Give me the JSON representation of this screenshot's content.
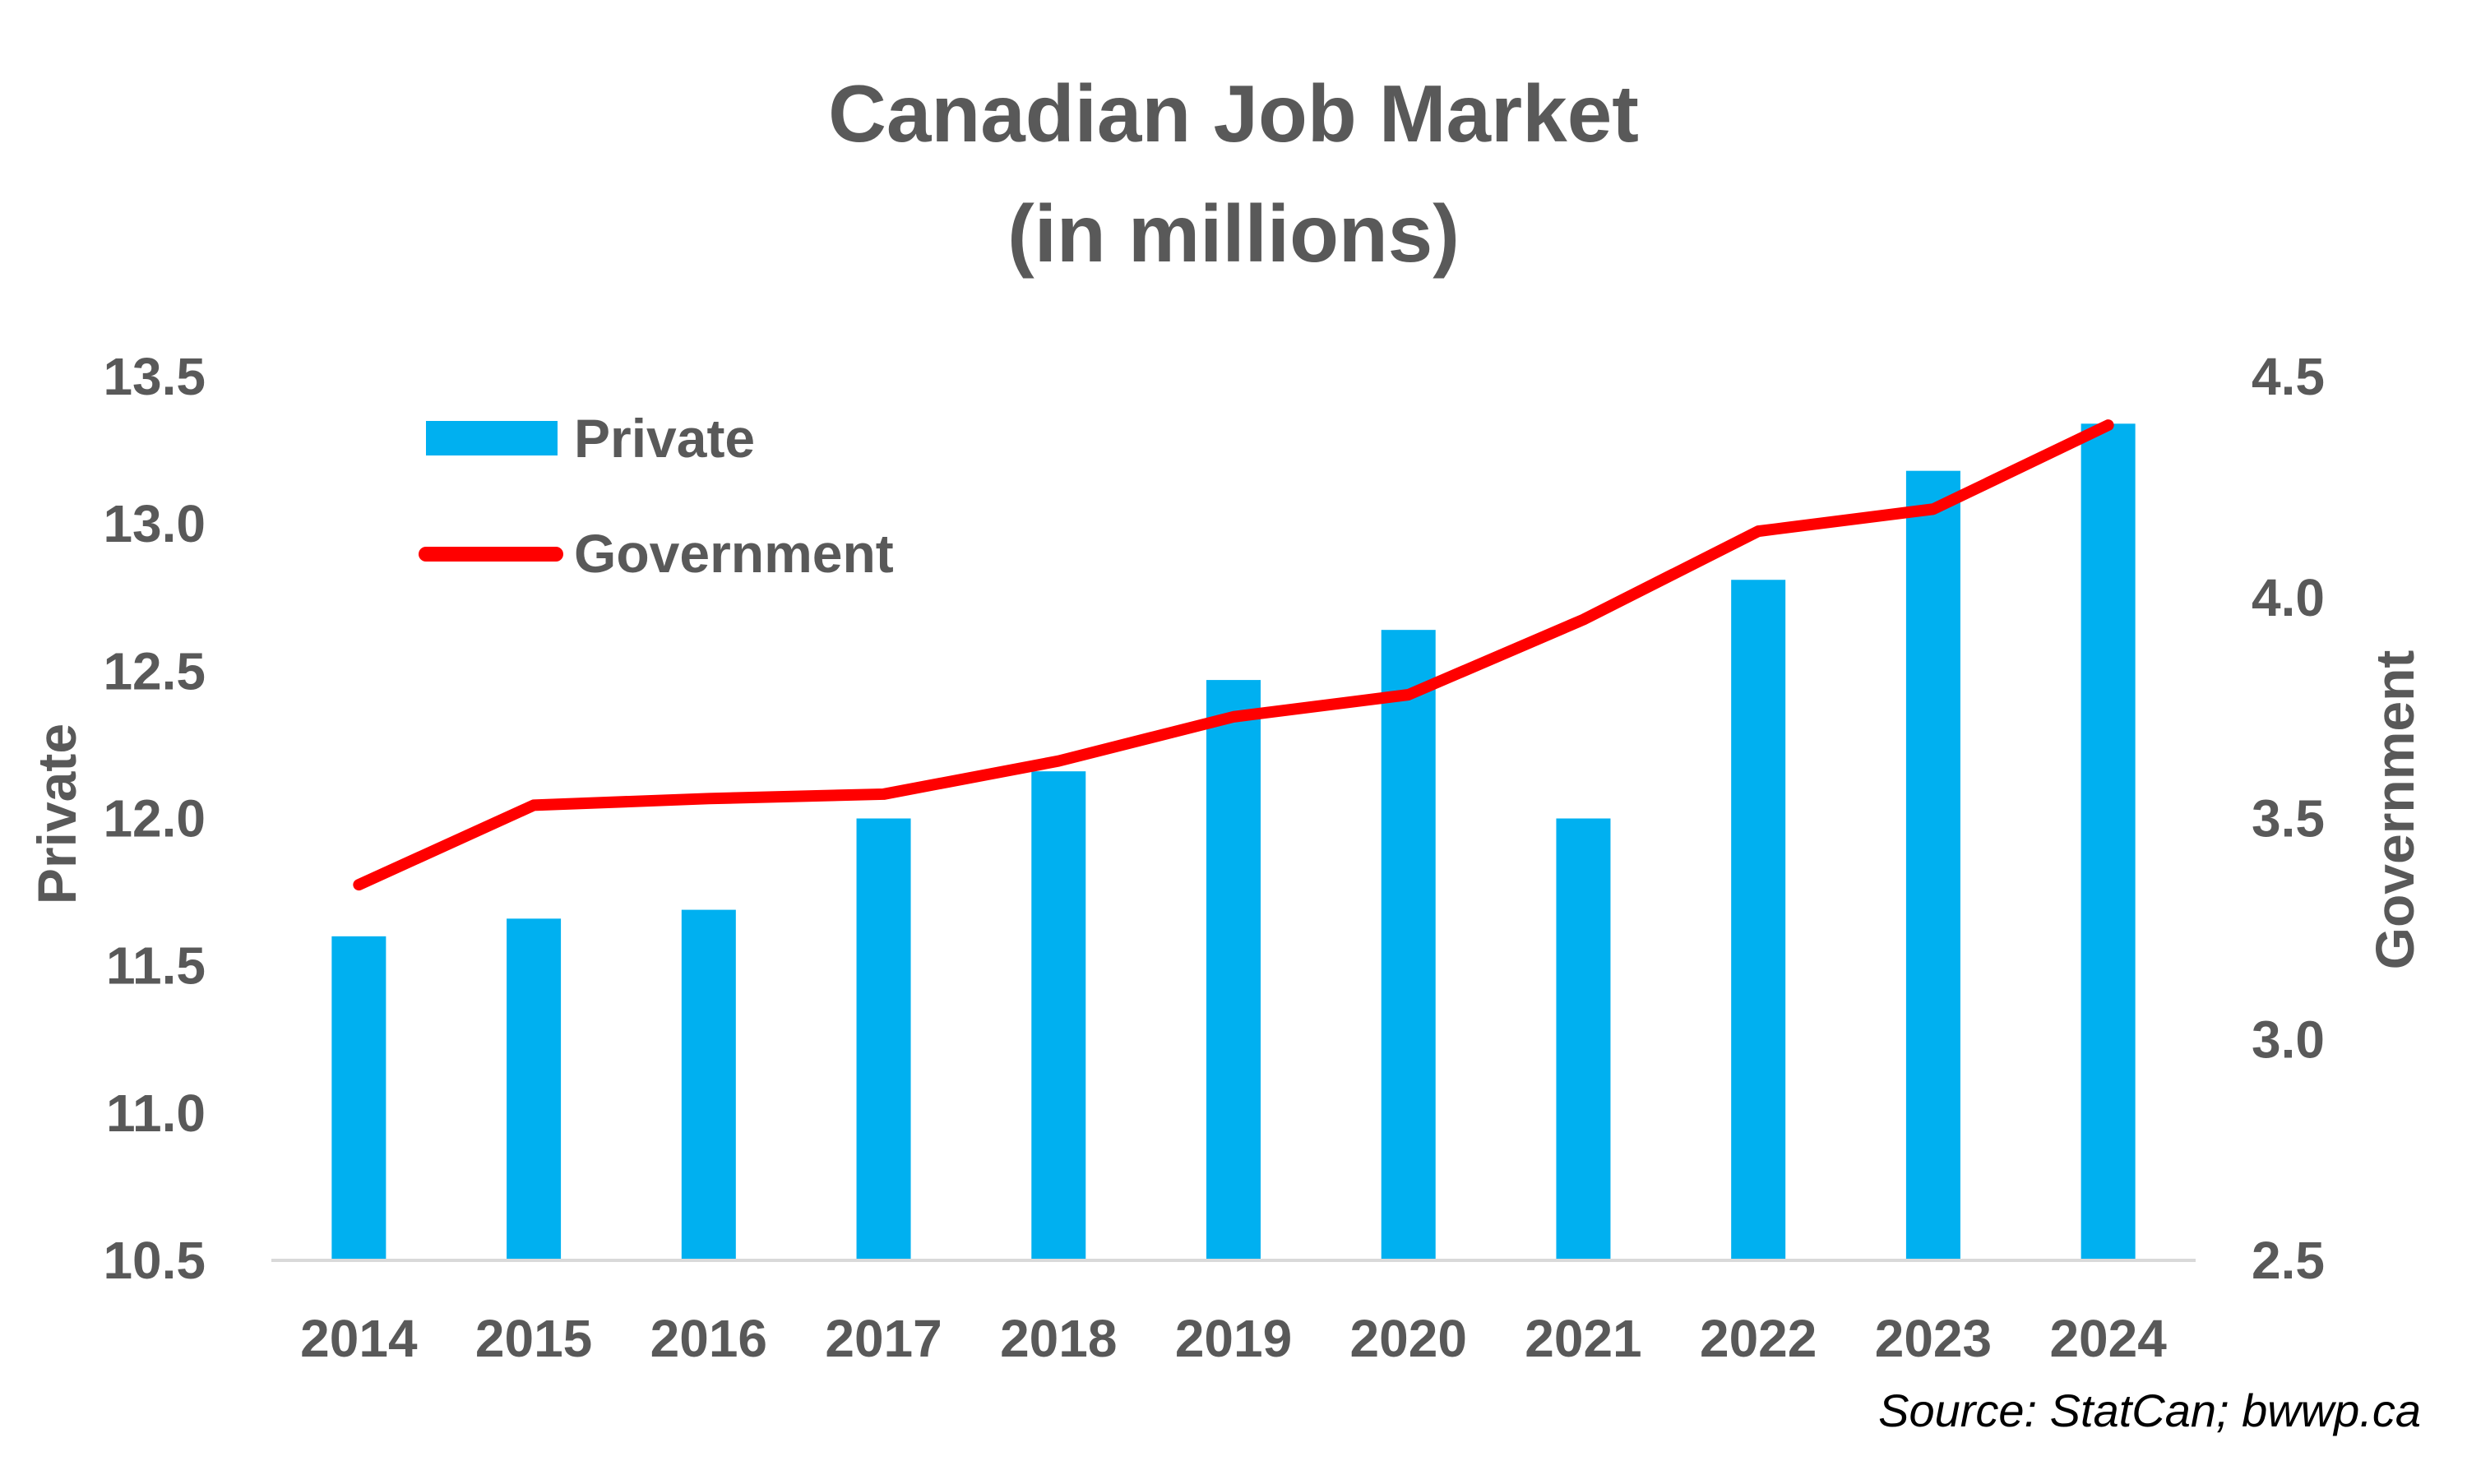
{
  "chart_data": {
    "type": "bar",
    "title": [
      "Canadian Job Market",
      "(in millions)"
    ],
    "categories": [
      "2014",
      "2015",
      "2016",
      "2017",
      "2018",
      "2019",
      "2020",
      "2021",
      "2022",
      "2023",
      "2024"
    ],
    "series": [
      {
        "name": "Private",
        "type": "bar",
        "axis": "left",
        "color": "#00B0F0",
        "values": [
          11.6,
          11.66,
          11.69,
          12.0,
          12.16,
          12.47,
          12.64,
          12.0,
          12.81,
          13.18,
          13.34
        ]
      },
      {
        "name": "Government",
        "type": "line",
        "axis": "right",
        "color": "#FF0000",
        "values": [
          3.35,
          3.53,
          3.545,
          3.555,
          3.63,
          3.73,
          3.78,
          3.95,
          4.15,
          4.2,
          4.39
        ]
      }
    ],
    "y_left": {
      "label": "Private",
      "range": [
        10.5,
        13.5
      ],
      "ticks": [
        "10.5",
        "11.0",
        "11.5",
        "12.0",
        "12.5",
        "13.0",
        "13.5"
      ]
    },
    "y_right": {
      "label": "Government",
      "range": [
        2.5,
        4.5
      ],
      "ticks": [
        "2.5",
        "3.0",
        "3.5",
        "4.0",
        "4.5"
      ]
    },
    "legend": {
      "position": "top-left",
      "items": [
        "Private",
        "Government"
      ]
    },
    "grid": false,
    "source": "Source: StatCan; bwwp.ca"
  }
}
